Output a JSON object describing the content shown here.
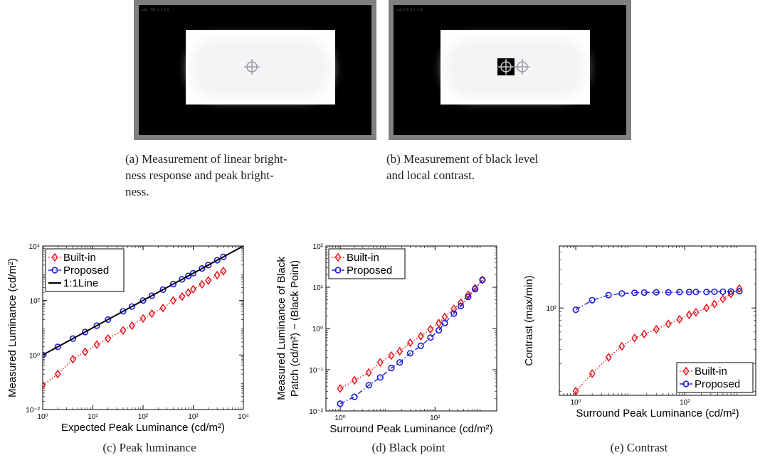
{
  "figure": {
    "panels": [
      {
        "id": "a",
        "caption": "(a) Measurement of linear bright-\nness response and peak bright-\nness.",
        "screen_tag": "Lum. ICS 1.1 1.0"
      },
      {
        "id": "b",
        "caption": "(b) Measurement of black level\nand local contrast.",
        "screen_tag": "Lum.ICS 0.5 1.0"
      }
    ],
    "colors": {
      "builtin": "#e8141c",
      "proposed": "#1d1dd6",
      "line": "#000000",
      "frame": "#808080"
    }
  },
  "chart_data": [
    {
      "id": "c",
      "type": "line",
      "caption": "(c) Peak luminance",
      "title": "",
      "xlabel": "Expected Peak Luminance (cd/m²)",
      "ylabel": "Measured Luminance (cd/m²)",
      "xscale": "log",
      "yscale": "log",
      "xlim": [
        1,
        10000
      ],
      "ylim": [
        0.01,
        10000
      ],
      "xticks": [
        "10⁰",
        "10¹",
        "10²",
        "10³",
        "10⁴"
      ],
      "yticks": [
        "10⁻²",
        "10⁰",
        "10²",
        "10⁴"
      ],
      "legend_position": "top-left",
      "series": [
        {
          "name": "Built-in",
          "marker": "diamond",
          "style": "dotted",
          "x": [
            1,
            2,
            4,
            7,
            12,
            20,
            40,
            60,
            100,
            150,
            250,
            400,
            600,
            800,
            1000,
            1500,
            2000,
            3000,
            4000
          ],
          "y": [
            0.08,
            0.2,
            0.7,
            1.3,
            2.4,
            4,
            8,
            12,
            22,
            33,
            53,
            100,
            140,
            195,
            260,
            390,
            540,
            850,
            1200
          ]
        },
        {
          "name": "Proposed",
          "marker": "circle",
          "style": "dashdot",
          "x": [
            1,
            2,
            4,
            7,
            12,
            20,
            40,
            60,
            100,
            150,
            250,
            400,
            600,
            800,
            1000,
            1500,
            2000,
            3000,
            4000
          ],
          "y": [
            1,
            2,
            4,
            7,
            12,
            20,
            40,
            60,
            100,
            150,
            250,
            400,
            600,
            800,
            1000,
            1500,
            2000,
            3000,
            4000
          ]
        },
        {
          "name": "1:1Line",
          "marker": "none",
          "style": "solid",
          "x": [
            1,
            10000
          ],
          "y": [
            1,
            10000
          ]
        }
      ]
    },
    {
      "id": "d",
      "type": "line",
      "caption": "(d) Black point",
      "title": "",
      "xlabel": "Surround Peak Luminance (cd/m²)",
      "ylabel": "Measured Luminance of Black Patch (cd/m²) − (Black Point)",
      "ylabel_lines": [
        "Measured Luminance of Black",
        "Patch (cd/m²) − (Black Point)"
      ],
      "xscale": "log",
      "yscale": "log",
      "xlim": [
        0.5,
        2000
      ],
      "ylim": [
        0.01,
        100
      ],
      "xticks": [
        "10⁰",
        "10²"
      ],
      "yticks": [
        "10⁻²",
        "10⁻¹",
        "10⁰",
        "10¹",
        "10²"
      ],
      "legend_position": "top-left",
      "series": [
        {
          "name": "Built-in",
          "marker": "diamond",
          "style": "dotted",
          "x": [
            1,
            2,
            4,
            7,
            12,
            18,
            30,
            50,
            80,
            120,
            160,
            250,
            350,
            500,
            700,
            1000
          ],
          "y": [
            0.035,
            0.055,
            0.085,
            0.15,
            0.22,
            0.28,
            0.45,
            0.65,
            0.95,
            1.35,
            1.9,
            3,
            4.2,
            6.5,
            9.5,
            15
          ]
        },
        {
          "name": "Proposed",
          "marker": "circle",
          "style": "dashdot",
          "x": [
            1,
            2,
            4,
            7,
            12,
            18,
            30,
            50,
            80,
            120,
            160,
            250,
            350,
            500,
            700,
            1000
          ],
          "y": [
            0.015,
            0.022,
            0.042,
            0.065,
            0.11,
            0.15,
            0.25,
            0.38,
            0.6,
            0.9,
            1.35,
            2.3,
            3.5,
            5.8,
            9,
            15
          ]
        }
      ]
    },
    {
      "id": "e",
      "type": "line",
      "caption": "(e) Contrast",
      "title": "",
      "xlabel": "Surround Peak Luminance (cd/m²)",
      "ylabel": "Contrast (max/min)",
      "xscale": "log",
      "yscale": "log",
      "xlim": [
        0.5,
        2000
      ],
      "ylim": [
        8,
        600
      ],
      "xticks": [
        "10⁰",
        "10²"
      ],
      "yticks": [
        "10²"
      ],
      "legend_position": "bottom-right",
      "series": [
        {
          "name": "Built-in",
          "marker": "diamond",
          "style": "dotted",
          "x": [
            1,
            2,
            4,
            7,
            12,
            18,
            30,
            50,
            80,
            120,
            160,
            250,
            350,
            500,
            700,
            1000
          ],
          "y": [
            9,
            15,
            24,
            33,
            42,
            47,
            54,
            63,
            72,
            82,
            88,
            100,
            112,
            130,
            150,
            175
          ]
        },
        {
          "name": "Proposed",
          "marker": "circle",
          "style": "dashdot",
          "x": [
            1,
            2,
            4,
            7,
            12,
            18,
            30,
            50,
            80,
            120,
            160,
            250,
            350,
            500,
            700,
            1000
          ],
          "y": [
            95,
            125,
            145,
            152,
            155,
            156,
            157,
            157,
            158,
            158,
            159,
            159,
            160,
            160,
            161,
            162
          ]
        }
      ]
    }
  ]
}
